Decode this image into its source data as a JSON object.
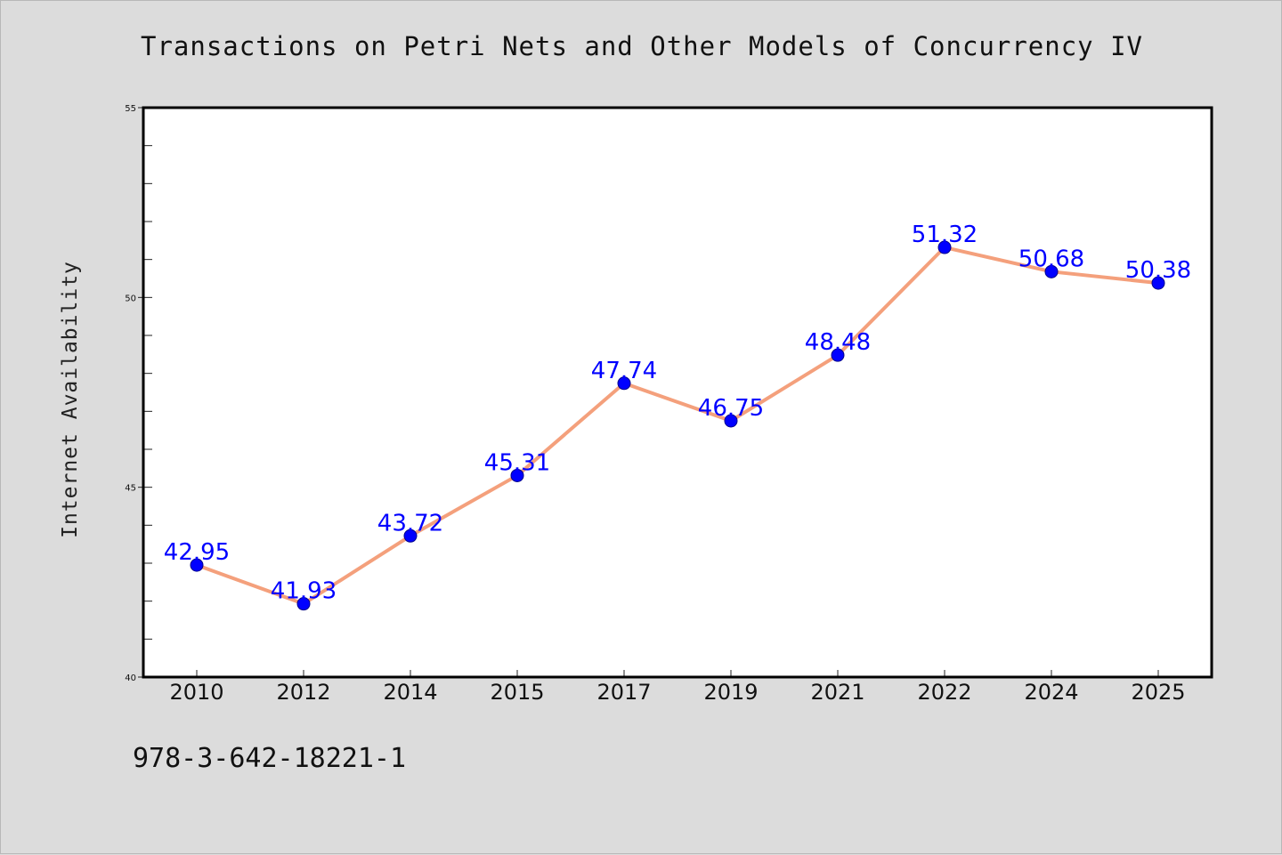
{
  "chart_data": {
    "type": "line",
    "title": "Transactions on Petri Nets and Other Models of Concurrency IV",
    "ylabel": "Internet Availability",
    "xlabel": "",
    "categories": [
      "2010",
      "2012",
      "2014",
      "2015",
      "2017",
      "2019",
      "2021",
      "2022",
      "2024",
      "2025"
    ],
    "series": [
      {
        "values": [
          42.95,
          41.93,
          43.72,
          45.31,
          47.74,
          46.75,
          48.48,
          51.32,
          50.68,
          50.38
        ],
        "data_labels": [
          "42.95",
          "41.93",
          "43.72",
          "45.31",
          "47.74",
          "46.75",
          "48.48",
          "51.32",
          "50.68",
          "50.38"
        ],
        "line_color": "#f4a07c",
        "marker_color": "#0000ff"
      }
    ],
    "ylim": [
      40,
      55
    ],
    "yticks": [
      "40",
      "45",
      "50",
      "55"
    ],
    "grid": false,
    "label_color": "#0000ff"
  },
  "footer": {
    "isbn": "978-3-642-18221-1"
  },
  "colors": {
    "background": "#dcdcdc",
    "plot_background": "#ffffff"
  }
}
